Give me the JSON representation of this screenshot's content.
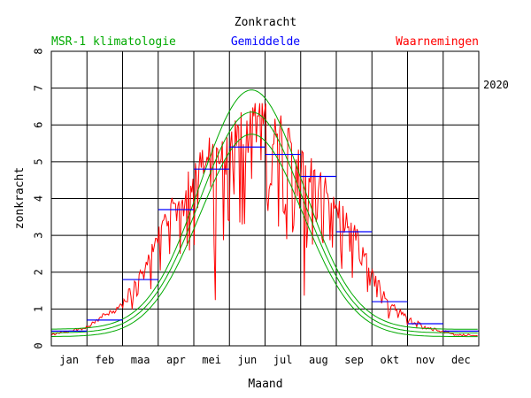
{
  "chart_data": {
    "type": "line",
    "title": "Zonkracht",
    "xlabel": "Maand",
    "ylabel": "zonkracht",
    "ylim": [
      0,
      8
    ],
    "yticks": [
      "0",
      "1",
      "2",
      "3",
      "4",
      "5",
      "6",
      "7",
      "8"
    ],
    "months": [
      "jan",
      "feb",
      "maa",
      "apr",
      "mei",
      "jun",
      "jul",
      "aug",
      "sep",
      "okt",
      "nov",
      "dec"
    ],
    "year_label": "2020",
    "legend": {
      "climatology": "MSR-1 klimatologie",
      "mean": "Gemiddelde",
      "observations": "Waarnemingen"
    },
    "colors": {
      "climatology": "#00aa00",
      "mean": "#0000ff",
      "observations": "#ff0000",
      "year": "#ff0000"
    },
    "climatology": {
      "peak_day": 172,
      "upper": {
        "min": 0.45,
        "max": 6.95
      },
      "middle": {
        "min": 0.35,
        "max": 6.35
      },
      "lower": {
        "min": 0.25,
        "max": 5.75
      }
    },
    "monthly_means": [
      0.4,
      0.7,
      1.8,
      3.7,
      4.8,
      5.4,
      5.2,
      4.6,
      3.1,
      1.2,
      0.6,
      0.4
    ],
    "observations": {
      "anchor_days": [
        1,
        15,
        31,
        45,
        60,
        75,
        91,
        105,
        121,
        135,
        152,
        166,
        182,
        196,
        213,
        227,
        244,
        258,
        274,
        288,
        305,
        320,
        335,
        350,
        365
      ],
      "anchor_values": [
        0.3,
        0.4,
        0.5,
        0.8,
        1.1,
        1.8,
        2.9,
        3.9,
        4.5,
        5.2,
        5.6,
        6.0,
        6.1,
        5.8,
        5.3,
        4.6,
        3.9,
        3.2,
        2.1,
        1.2,
        0.8,
        0.5,
        0.4,
        0.3,
        0.3
      ],
      "dip_fraction": [
        0.1,
        0.1,
        0.15,
        0.25,
        0.35,
        0.45,
        0.5,
        0.5,
        0.5,
        0.5,
        0.45,
        0.3,
        0.25,
        0.2,
        0.1,
        0.1
      ]
    }
  }
}
